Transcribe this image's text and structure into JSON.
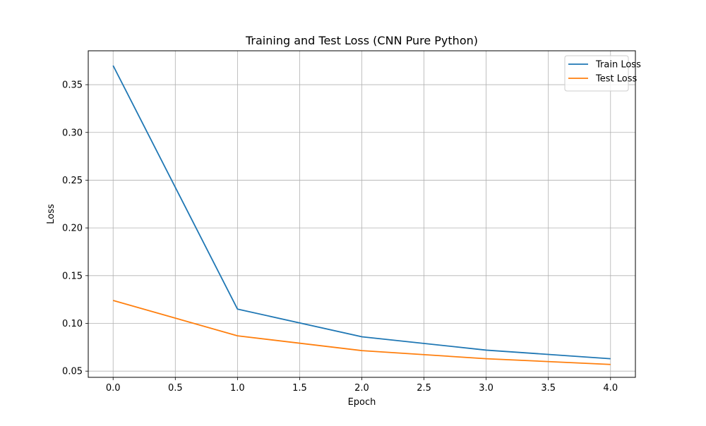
{
  "chart_data": {
    "type": "line",
    "title": "Training and Test Loss (CNN Pure Python)",
    "xlabel": "Epoch",
    "ylabel": "Loss",
    "xlim": [
      -0.2,
      4.2
    ],
    "ylim": [
      0.0435,
      0.3855
    ],
    "grid": true,
    "legend_position": "top-right",
    "x_ticks": [
      0.0,
      0.5,
      1.0,
      1.5,
      2.0,
      2.5,
      3.0,
      3.5,
      4.0
    ],
    "x_tick_labels": [
      "0.0",
      "0.5",
      "1.0",
      "1.5",
      "2.0",
      "2.5",
      "3.0",
      "3.5",
      "4.0"
    ],
    "y_ticks": [
      0.05,
      0.1,
      0.15,
      0.2,
      0.25,
      0.3,
      0.35
    ],
    "y_tick_labels": [
      "0.05",
      "0.10",
      "0.15",
      "0.20",
      "0.25",
      "0.30",
      "0.35"
    ],
    "x": [
      0,
      1,
      2,
      3,
      4
    ],
    "series": [
      {
        "name": "Train Loss",
        "color": "#1f77b4",
        "values": [
          0.37,
          0.115,
          0.086,
          0.072,
          0.063
        ]
      },
      {
        "name": "Test Loss",
        "color": "#ff7f0e",
        "values": [
          0.124,
          0.087,
          0.0715,
          0.063,
          0.057
        ]
      }
    ]
  }
}
